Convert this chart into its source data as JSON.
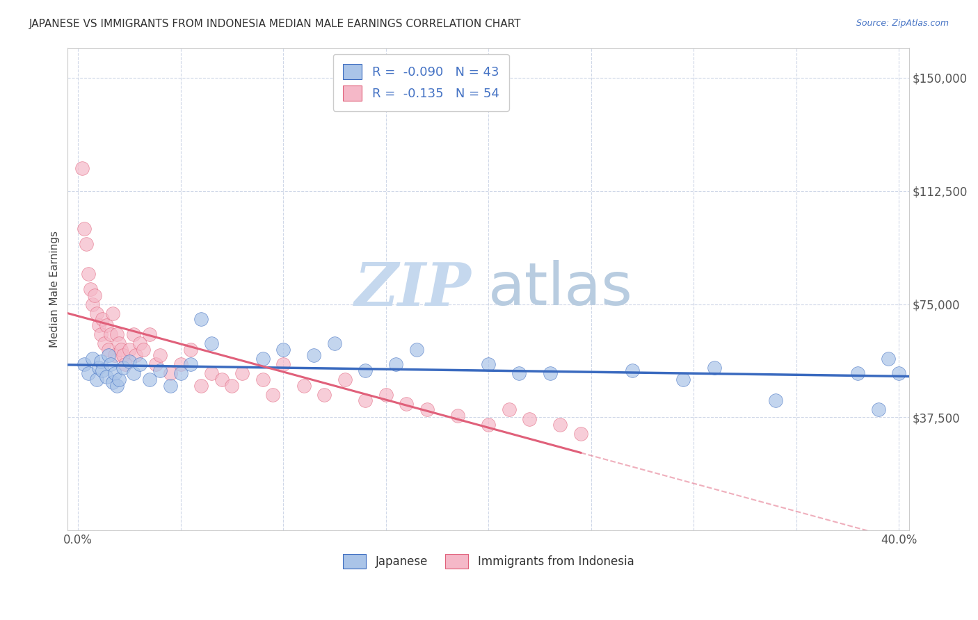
{
  "title": "JAPANESE VS IMMIGRANTS FROM INDONESIA MEDIAN MALE EARNINGS CORRELATION CHART",
  "source": "Source: ZipAtlas.com",
  "ylabel": "Median Male Earnings",
  "xlabel": "",
  "xlim": [
    -0.005,
    0.405
  ],
  "ylim": [
    0,
    160000
  ],
  "yticks": [
    0,
    37500,
    75000,
    112500,
    150000
  ],
  "ytick_labels": [
    "",
    "$37,500",
    "$75,000",
    "$112,500",
    "$150,000"
  ],
  "xticks": [
    0.0,
    0.05,
    0.1,
    0.15,
    0.2,
    0.25,
    0.3,
    0.35,
    0.4
  ],
  "xtick_labels": [
    "0.0%",
    "",
    "",
    "",
    "",
    "",
    "",
    "",
    "40.0%"
  ],
  "legend_r1": "R =  -0.090",
  "legend_n1": "N = 43",
  "legend_r2": "R =  -0.135",
  "legend_n2": "N = 54",
  "japanese_color": "#aac4e8",
  "indonesia_color": "#f5b8c8",
  "japanese_line_color": "#3a6abf",
  "indonesia_line_color": "#e0607a",
  "watermark_zip": "ZIP",
  "watermark_atlas": "atlas",
  "watermark_color_zip": "#c5d8ee",
  "watermark_color_atlas": "#b8cce0",
  "background_color": "#ffffff",
  "japanese_x": [
    0.003,
    0.005,
    0.007,
    0.009,
    0.01,
    0.011,
    0.012,
    0.014,
    0.015,
    0.016,
    0.017,
    0.018,
    0.019,
    0.02,
    0.022,
    0.025,
    0.027,
    0.03,
    0.035,
    0.04,
    0.045,
    0.05,
    0.055,
    0.06,
    0.065,
    0.09,
    0.1,
    0.115,
    0.125,
    0.14,
    0.155,
    0.165,
    0.2,
    0.215,
    0.23,
    0.27,
    0.295,
    0.31,
    0.34,
    0.38,
    0.39,
    0.395,
    0.4
  ],
  "japanese_y": [
    55000,
    52000,
    57000,
    50000,
    54000,
    56000,
    53000,
    51000,
    58000,
    55000,
    49000,
    52000,
    48000,
    50000,
    54000,
    56000,
    52000,
    55000,
    50000,
    53000,
    48000,
    52000,
    55000,
    70000,
    62000,
    57000,
    60000,
    58000,
    62000,
    53000,
    55000,
    60000,
    55000,
    52000,
    52000,
    53000,
    50000,
    54000,
    43000,
    52000,
    40000,
    57000,
    52000
  ],
  "indonesia_x": [
    0.002,
    0.003,
    0.004,
    0.005,
    0.006,
    0.007,
    0.008,
    0.009,
    0.01,
    0.011,
    0.012,
    0.013,
    0.014,
    0.015,
    0.016,
    0.017,
    0.018,
    0.019,
    0.02,
    0.021,
    0.022,
    0.023,
    0.025,
    0.027,
    0.028,
    0.03,
    0.032,
    0.035,
    0.038,
    0.04,
    0.045,
    0.05,
    0.055,
    0.06,
    0.065,
    0.07,
    0.075,
    0.08,
    0.09,
    0.095,
    0.1,
    0.11,
    0.12,
    0.13,
    0.14,
    0.15,
    0.16,
    0.17,
    0.185,
    0.2,
    0.21,
    0.22,
    0.235,
    0.245
  ],
  "indonesia_y": [
    120000,
    100000,
    95000,
    85000,
    80000,
    75000,
    78000,
    72000,
    68000,
    65000,
    70000,
    62000,
    68000,
    60000,
    65000,
    72000,
    58000,
    65000,
    62000,
    60000,
    58000,
    55000,
    60000,
    65000,
    58000,
    62000,
    60000,
    65000,
    55000,
    58000,
    52000,
    55000,
    60000,
    48000,
    52000,
    50000,
    48000,
    52000,
    50000,
    45000,
    55000,
    48000,
    45000,
    50000,
    43000,
    45000,
    42000,
    40000,
    38000,
    35000,
    40000,
    37000,
    35000,
    32000
  ]
}
